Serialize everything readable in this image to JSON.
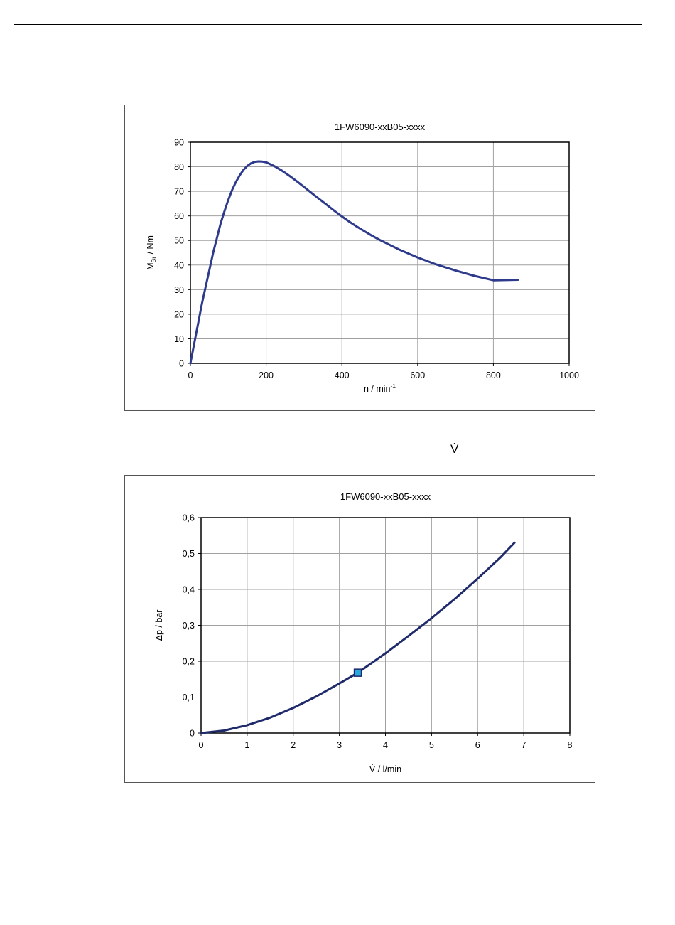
{
  "chart_data": [
    {
      "type": "line",
      "title": "1FW6090-xxB05-xxxx",
      "xlabel": "n / min",
      "xlabel_sup": "-1",
      "ylabel": "M",
      "ylabel_sub": "Br",
      "ylabel_suffix": " / Nm",
      "xlim": [
        0,
        1000
      ],
      "ylim": [
        0,
        90
      ],
      "x_ticks": [
        "0",
        "200",
        "400",
        "600",
        "800",
        "1000"
      ],
      "y_ticks": [
        "0",
        "10",
        "20",
        "30",
        "40",
        "50",
        "60",
        "70",
        "80",
        "90"
      ],
      "grid": true,
      "line_color": "#2e3b8c",
      "series": [
        {
          "x": [
            0,
            10,
            20,
            30,
            40,
            50,
            60,
            70,
            80,
            90,
            100,
            110,
            120,
            130,
            140,
            150,
            160,
            170,
            180,
            190,
            200,
            220,
            240,
            260,
            280,
            300,
            320,
            340,
            360,
            380,
            400,
            420,
            440,
            460,
            480,
            500,
            550,
            600,
            650,
            700,
            750,
            800,
            865
          ],
          "y": [
            0,
            8,
            16,
            24,
            31,
            38,
            45,
            51,
            57,
            62,
            66.5,
            70.5,
            73.8,
            76.5,
            78.7,
            80.3,
            81.4,
            82,
            82.2,
            82.1,
            81.8,
            80.4,
            78.6,
            76.5,
            74.2,
            71.8,
            69.3,
            66.9,
            64.5,
            62.1,
            59.8,
            57.6,
            55.6,
            53.7,
            51.9,
            50.2,
            46.4,
            43.1,
            40.2,
            37.8,
            35.6,
            33.8,
            34
          ]
        }
      ]
    },
    {
      "type": "line",
      "title": "1FW6090-xxB05-xxxx",
      "xlabel": "V̇ / l/min",
      "ylabel": "Δp / bar",
      "xlim": [
        0,
        8
      ],
      "ylim": [
        0,
        0.6
      ],
      "x_ticks": [
        "0",
        "1",
        "2",
        "3",
        "4",
        "5",
        "6",
        "7",
        "8"
      ],
      "y_ticks": [
        "0",
        "0,1",
        "0,2",
        "0,3",
        "0,4",
        "0,5",
        "0,6"
      ],
      "grid": true,
      "line_color": "#1f2a6b",
      "marker_color": "#29a8e0",
      "series": [
        {
          "x": [
            0,
            0.5,
            1,
            1.5,
            2,
            2.5,
            3,
            3.4,
            4,
            4.5,
            5,
            5.5,
            6,
            6.5,
            6.8
          ],
          "y": [
            0,
            0.007,
            0.022,
            0.043,
            0.07,
            0.102,
            0.138,
            0.168,
            0.222,
            0.27,
            0.32,
            0.373,
            0.43,
            0.49,
            0.53
          ]
        }
      ],
      "marker": {
        "x": 3.4,
        "y": 0.168
      }
    }
  ],
  "page": {
    "vdot_symbol": "V̇"
  }
}
